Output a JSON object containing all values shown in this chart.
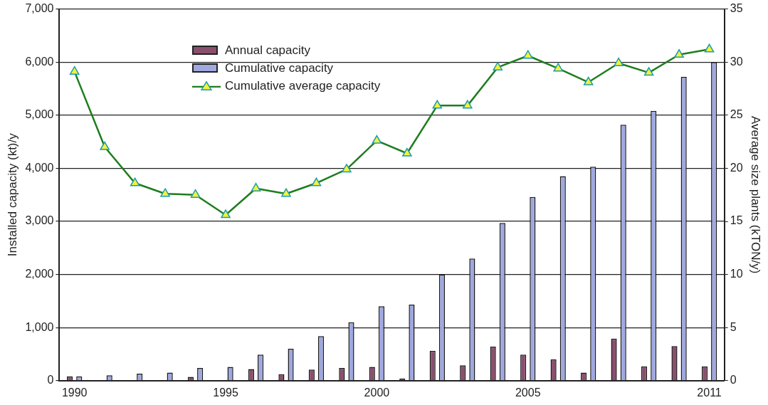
{
  "chart_data": {
    "type": "bar",
    "categories": [
      "1990",
      null,
      null,
      null,
      null,
      "1995",
      null,
      null,
      null,
      null,
      "2000",
      null,
      null,
      null,
      null,
      "2005",
      null,
      null,
      null,
      null,
      null,
      "2011"
    ],
    "series": [
      {
        "name": "Annual capacity",
        "color": "#8b4f6e",
        "values": [
          80,
          null,
          null,
          null,
          70,
          null,
          220,
          120,
          210,
          240,
          260,
          40,
          560,
          290,
          640,
          490,
          400,
          150,
          790,
          270,
          650,
          270
        ]
      },
      {
        "name": "Cumulative capacity",
        "color": "#a0a8e0",
        "values": [
          80,
          100,
          130,
          150,
          240,
          260,
          490,
          600,
          840,
          1100,
          1400,
          1430,
          2000,
          2300,
          2970,
          3460,
          3850,
          4030,
          4820,
          5080,
          5720,
          6000
        ]
      },
      {
        "name": "Cumulative average capacity",
        "type": "line",
        "axis": "y2",
        "color": "#1e7d1e",
        "values": [
          29.1,
          22.0,
          18.6,
          17.6,
          17.5,
          15.6,
          18.1,
          17.6,
          18.6,
          19.9,
          22.6,
          21.4,
          25.9,
          25.9,
          29.5,
          30.6,
          29.4,
          28.1,
          29.9,
          29.0,
          30.7,
          31.2
        ]
      }
    ],
    "ylabel": "Installed capacity (kt)/y",
    "y2label": "Average size plants (kTON/y)",
    "ylim": [
      0,
      7000
    ],
    "yticks": [
      {
        "value": 0,
        "label": "0"
      },
      {
        "value": 1000,
        "label": "1,000"
      },
      {
        "value": 2000,
        "label": "2,000"
      },
      {
        "value": 3000,
        "label": "3,000"
      },
      {
        "value": 4000,
        "label": "4,000"
      },
      {
        "value": 5000,
        "label": "5,000"
      },
      {
        "value": 6000,
        "label": "6,000"
      },
      {
        "value": 7000,
        "label": "7,000"
      }
    ],
    "y2lim": [
      0,
      35
    ],
    "y2ticks": [
      0,
      5,
      10,
      15,
      20,
      25,
      30,
      35
    ],
    "grid": "y",
    "legend": "top",
    "marker": "triangle",
    "line_style": "solid"
  }
}
